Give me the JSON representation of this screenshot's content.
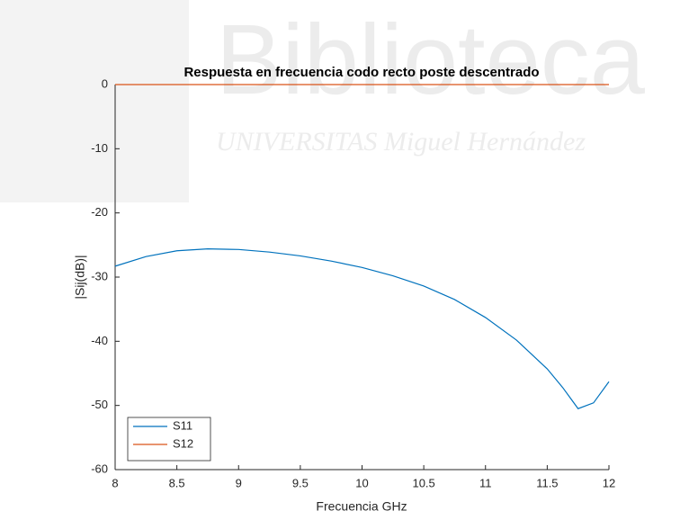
{
  "watermark": {
    "title": "Biblioteca",
    "subtitle": "UNIVERSITAS Miguel Hernández"
  },
  "chart_data": {
    "type": "line",
    "title": "Respuesta en frecuencia codo recto poste descentrado",
    "x_label": "Frecuencia GHz",
    "y_label": "|Sij(dB)|",
    "x": [
      8,
      8.25,
      8.5,
      8.75,
      9,
      9.25,
      9.5,
      9.75,
      10,
      10.25,
      10.5,
      10.75,
      11,
      11.25,
      11.5,
      11.625,
      11.75,
      11.875,
      12
    ],
    "series": [
      {
        "name": "S11",
        "color": "#0072bd",
        "values": [
          -28.3,
          -26.8,
          -25.9,
          -25.6,
          -25.7,
          -26.1,
          -26.7,
          -27.5,
          -28.5,
          -29.8,
          -31.4,
          -33.5,
          -36.3,
          -39.8,
          -44.3,
          -47.2,
          -50.5,
          -49.6,
          -46.3
        ]
      },
      {
        "name": "S12",
        "color": "#d95319",
        "values": [
          0,
          0,
          0,
          0,
          0,
          0,
          0,
          0,
          0,
          0,
          0,
          0,
          0,
          0,
          0,
          0,
          0,
          0,
          0
        ]
      }
    ],
    "xlim": [
      8,
      12
    ],
    "xticks": [
      8,
      8.5,
      9,
      9.5,
      10,
      10.5,
      11,
      11.5,
      12
    ],
    "ylim": [
      -60,
      0
    ],
    "yticks": [
      -60,
      -50,
      -40,
      -30,
      -20,
      -10,
      0
    ],
    "legend": "lower left"
  }
}
